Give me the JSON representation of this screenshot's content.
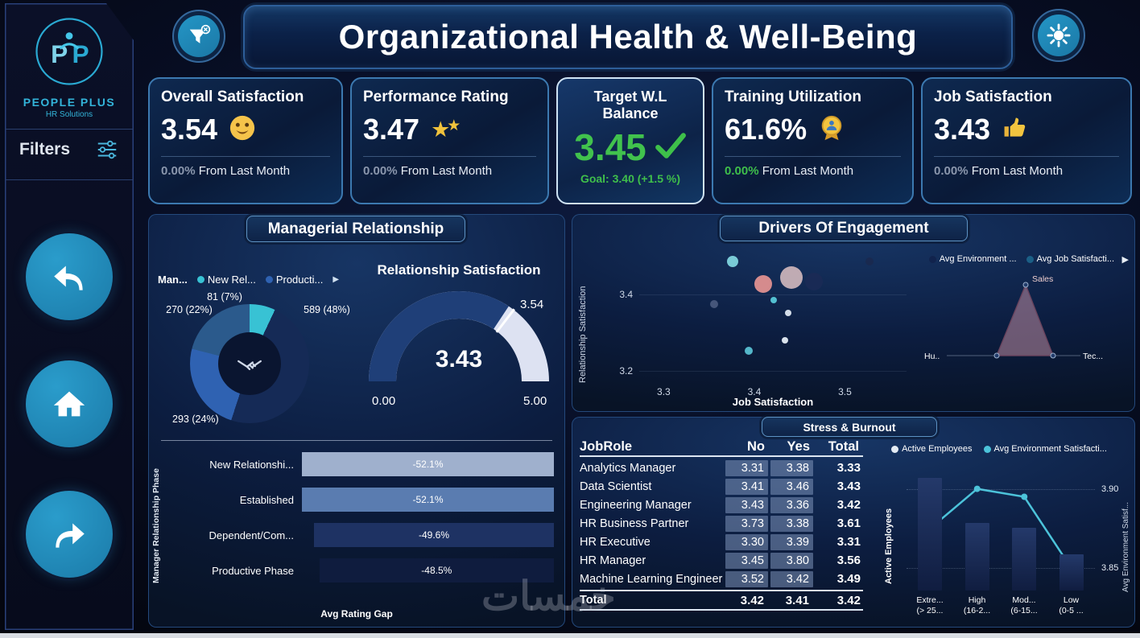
{
  "header": {
    "title": "Organizational Health & Well-Being"
  },
  "sidebar": {
    "logo_line1": "PEOPLE PLUS",
    "logo_line2": "HR Solutions",
    "filters_label": "Filters"
  },
  "kpis": [
    {
      "id": "overall-satisfaction",
      "title": "Overall Satisfaction",
      "value": "3.54",
      "icon": "smiley-icon",
      "delta": "0.00%",
      "delta_suffix": "From Last Month",
      "delta_color": "#8b97ad"
    },
    {
      "id": "performance-rating",
      "title": "Performance Rating",
      "value": "3.47",
      "icon": "stars-icon",
      "delta": "0.00%",
      "delta_suffix": "From Last Month",
      "delta_color": "#8b97ad"
    },
    {
      "id": "target-wl-balance",
      "title": "Target W.L Balance",
      "value": "3.45",
      "icon": "check-icon",
      "goal": "Goal: 3.40 (+1.5 %)",
      "selected": true
    },
    {
      "id": "training-utilization",
      "title": "Training Utilization",
      "value": "61.6%",
      "icon": "medal-icon",
      "delta": "0.00%",
      "delta_suffix": "From Last Month",
      "delta_color": "#3fbf4b"
    },
    {
      "id": "job-satisfaction",
      "title": "Job Satisfaction",
      "value": "3.43",
      "icon": "thumbs-up-icon",
      "delta": "0.00%",
      "delta_suffix": "From Last Month",
      "delta_color": "#8b97ad"
    }
  ],
  "managerial": {
    "title": "Managerial Relationship",
    "legend_title": "Man...",
    "legend": [
      {
        "label": "New Rel...",
        "color": "#38c2d4"
      },
      {
        "label": "Producti...",
        "color": "#2f62b2"
      }
    ],
    "donut": {
      "slices": [
        {
          "label": "81 (7%)",
          "value": 81,
          "pct": 7,
          "color": "#38c2d4"
        },
        {
          "label": "589 (48%)",
          "value": 589,
          "pct": 48,
          "color": "#152a56"
        },
        {
          "label": "293 (24%)",
          "value": 293,
          "pct": 24,
          "color": "#2f62b2"
        },
        {
          "label": "270 (22%)",
          "value": 270,
          "pct": 22,
          "color": "#2b5a8c"
        }
      ]
    },
    "gauge": {
      "title": "Relationship Satisfaction",
      "value": "3.43",
      "value_num": 3.43,
      "max": 5,
      "min_label": "0.00",
      "max_label": "5.00",
      "target_label": "3.54",
      "target_num": 3.54
    },
    "bars": {
      "ylabel": "Manager Relationship Phase",
      "xlabel": "Avg Rating Gap",
      "rows": [
        {
          "label": "New Relationshi...",
          "value": "-52.1%",
          "num": -52.1,
          "color": "#9fb0cd"
        },
        {
          "label": "Established",
          "value": "-52.1%",
          "num": -52.1,
          "color": "#5a7cb0"
        },
        {
          "label": "Dependent/Com...",
          "value": "-49.6%",
          "num": -49.6,
          "color": "#1e3263"
        },
        {
          "label": "Productive Phase",
          "value": "-48.5%",
          "num": -48.5,
          "color": "#0f1c3e"
        }
      ]
    }
  },
  "drivers": {
    "title": "Drivers Of Engagement",
    "legend": [
      {
        "label": "Avg Environment ...",
        "color": "#11234d"
      },
      {
        "label": "Avg Job Satisfacti...",
        "color": "#1b5f86"
      }
    ],
    "xlabel": "Job Satisfaction",
    "ylabel": "Relationship Satisfaction",
    "x_range": [
      3.273,
      3.568
    ],
    "y_range": [
      3.172,
      3.505
    ],
    "x_ticks": [
      {
        "label": "3.3",
        "v": 3.3
      },
      {
        "label": "3.4",
        "v": 3.4
      },
      {
        "label": "3.5",
        "v": 3.5
      }
    ],
    "y_ticks": [
      {
        "label": "3.4",
        "v": 3.4
      },
      {
        "label": "3.2",
        "v": 3.2
      }
    ],
    "points": [
      {
        "x": 3.376,
        "y": 3.485,
        "r": 7,
        "color": "#7fd4de"
      },
      {
        "x": 3.41,
        "y": 3.426,
        "r": 11,
        "color": "#e09090"
      },
      {
        "x": 3.441,
        "y": 3.444,
        "r": 14,
        "color": "#c9b2b8"
      },
      {
        "x": 3.466,
        "y": 3.434,
        "r": 11,
        "color": "#1a2a55"
      },
      {
        "x": 3.356,
        "y": 3.374,
        "r": 5,
        "color": "#4a5a7d"
      },
      {
        "x": 3.421,
        "y": 3.384,
        "r": 4,
        "color": "#57c8d8"
      },
      {
        "x": 3.437,
        "y": 3.352,
        "r": 4,
        "color": "#dfe8f2"
      },
      {
        "x": 3.394,
        "y": 3.253,
        "r": 5,
        "color": "#58c0d2"
      },
      {
        "x": 3.434,
        "y": 3.279,
        "r": 4,
        "color": "#e6edf5"
      },
      {
        "x": 3.527,
        "y": 3.487,
        "r": 5,
        "color": "#19294f"
      }
    ],
    "radar": {
      "labels": [
        "Sales",
        "Hu..",
        "Tec..."
      ]
    }
  },
  "stress": {
    "title": "Stress & Burnout",
    "table": {
      "headers": [
        "JobRole",
        "No",
        "Yes",
        "Total"
      ],
      "rows": [
        [
          "Analytics Manager",
          "3.31",
          "3.38",
          "3.33"
        ],
        [
          "Data Scientist",
          "3.41",
          "3.46",
          "3.43"
        ],
        [
          "Engineering Manager",
          "3.43",
          "3.36",
          "3.42"
        ],
        [
          "HR Business Partner",
          "3.73",
          "3.38",
          "3.61"
        ],
        [
          "HR Executive",
          "3.30",
          "3.39",
          "3.31"
        ],
        [
          "HR Manager",
          "3.45",
          "3.80",
          "3.56"
        ],
        [
          "Machine Learning Engineer",
          "3.52",
          "3.42",
          "3.49"
        ]
      ],
      "total": [
        "Total",
        "3.42",
        "3.41",
        "3.42"
      ]
    },
    "combo": {
      "legend": [
        {
          "label": "Active Employees",
          "color": "#e4ebf4"
        },
        {
          "label": "Avg Environment Satisfacti...",
          "color": "#4cc3da"
        }
      ],
      "left_axis": "Active Employees",
      "right_axis": "Avg Environment Satisf...",
      "right_ticks": [
        {
          "label": "3.90",
          "v": 3.9
        },
        {
          "label": "3.85",
          "v": 3.85
        }
      ],
      "categories": [
        {
          "line1": "Extre...",
          "line2": "(> 25..."
        },
        {
          "line1": "High",
          "line2": "(16-2..."
        },
        {
          "line1": "Mod...",
          "line2": "(6-15..."
        },
        {
          "line1": "Low",
          "line2": "(0-5 ..."
        }
      ],
      "bar_values": [
        130,
        78,
        72,
        42
      ],
      "line_values": [
        3.875,
        3.9,
        3.895,
        3.85
      ],
      "line_range": [
        3.836,
        3.916
      ]
    }
  },
  "watermark": "خمسات"
}
